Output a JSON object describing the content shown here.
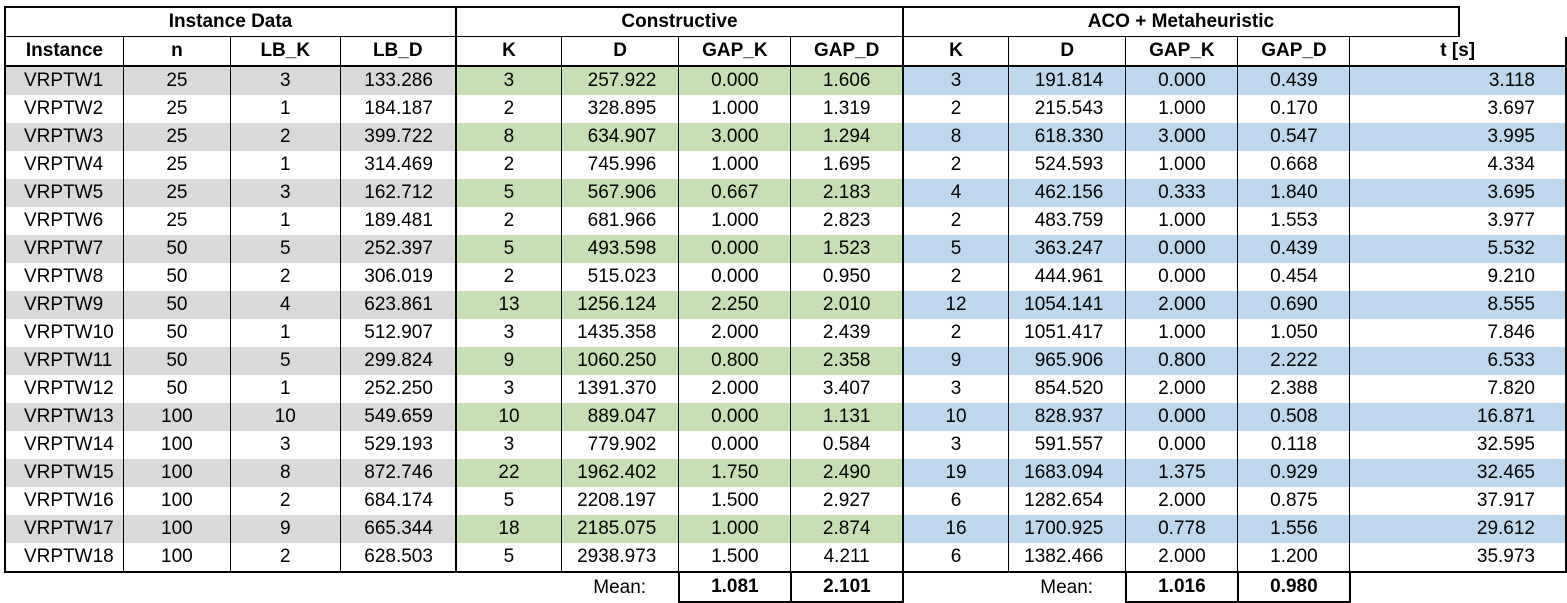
{
  "groups": {
    "instance": "Instance Data",
    "constructive": "Constructive",
    "aco": "ACO + Metaheuristic"
  },
  "columns": [
    "Instance",
    "n",
    "LB_K",
    "LB_D",
    "K",
    "D",
    "GAP_K",
    "GAP_D",
    "K",
    "D",
    "GAP_K",
    "GAP_D",
    "t [s]"
  ],
  "rows": [
    [
      "VRPTW1",
      "25",
      "3",
      "133.286",
      "3",
      "257.922",
      "0.000",
      "1.606",
      "3",
      "191.814",
      "0.000",
      "0.439",
      "3.118"
    ],
    [
      "VRPTW2",
      "25",
      "1",
      "184.187",
      "2",
      "328.895",
      "1.000",
      "1.319",
      "2",
      "215.543",
      "1.000",
      "0.170",
      "3.697"
    ],
    [
      "VRPTW3",
      "25",
      "2",
      "399.722",
      "8",
      "634.907",
      "3.000",
      "1.294",
      "8",
      "618.330",
      "3.000",
      "0.547",
      "3.995"
    ],
    [
      "VRPTW4",
      "25",
      "1",
      "314.469",
      "2",
      "745.996",
      "1.000",
      "1.695",
      "2",
      "524.593",
      "1.000",
      "0.668",
      "4.334"
    ],
    [
      "VRPTW5",
      "25",
      "3",
      "162.712",
      "5",
      "567.906",
      "0.667",
      "2.183",
      "4",
      "462.156",
      "0.333",
      "1.840",
      "3.695"
    ],
    [
      "VRPTW6",
      "25",
      "1",
      "189.481",
      "2",
      "681.966",
      "1.000",
      "2.823",
      "2",
      "483.759",
      "1.000",
      "1.553",
      "3.977"
    ],
    [
      "VRPTW7",
      "50",
      "5",
      "252.397",
      "5",
      "493.598",
      "0.000",
      "1.523",
      "5",
      "363.247",
      "0.000",
      "0.439",
      "5.532"
    ],
    [
      "VRPTW8",
      "50",
      "2",
      "306.019",
      "2",
      "515.023",
      "0.000",
      "0.950",
      "2",
      "444.961",
      "0.000",
      "0.454",
      "9.210"
    ],
    [
      "VRPTW9",
      "50",
      "4",
      "623.861",
      "13",
      "1256.124",
      "2.250",
      "2.010",
      "12",
      "1054.141",
      "2.000",
      "0.690",
      "8.555"
    ],
    [
      "VRPTW10",
      "50",
      "1",
      "512.907",
      "3",
      "1435.358",
      "2.000",
      "2.439",
      "2",
      "1051.417",
      "1.000",
      "1.050",
      "7.846"
    ],
    [
      "VRPTW11",
      "50",
      "5",
      "299.824",
      "9",
      "1060.250",
      "0.800",
      "2.358",
      "9",
      "965.906",
      "0.800",
      "2.222",
      "6.533"
    ],
    [
      "VRPTW12",
      "50",
      "1",
      "252.250",
      "3",
      "1391.370",
      "2.000",
      "3.407",
      "3",
      "854.520",
      "2.000",
      "2.388",
      "7.820"
    ],
    [
      "VRPTW13",
      "100",
      "10",
      "549.659",
      "10",
      "889.047",
      "0.000",
      "1.131",
      "10",
      "828.937",
      "0.000",
      "0.508",
      "16.871"
    ],
    [
      "VRPTW14",
      "100",
      "3",
      "529.193",
      "3",
      "779.902",
      "0.000",
      "0.584",
      "3",
      "591.557",
      "0.000",
      "0.118",
      "32.595"
    ],
    [
      "VRPTW15",
      "100",
      "8",
      "872.746",
      "22",
      "1962.402",
      "1.750",
      "2.490",
      "19",
      "1683.094",
      "1.375",
      "0.929",
      "32.465"
    ],
    [
      "VRPTW16",
      "100",
      "2",
      "684.174",
      "5",
      "2208.197",
      "1.500",
      "2.927",
      "6",
      "1282.654",
      "2.000",
      "0.875",
      "37.917"
    ],
    [
      "VRPTW17",
      "100",
      "9",
      "665.344",
      "18",
      "2185.075",
      "1.000",
      "2.874",
      "16",
      "1700.925",
      "0.778",
      "1.556",
      "29.612"
    ],
    [
      "VRPTW18",
      "100",
      "2",
      "628.503",
      "5",
      "2938.973",
      "1.500",
      "4.211",
      "6",
      "1382.466",
      "2.000",
      "1.200",
      "35.973"
    ]
  ],
  "means": {
    "label": "Mean:",
    "constructive_gap_k": "1.081",
    "constructive_gap_d": "2.101",
    "aco_gap_k": "1.016",
    "aco_gap_d": "0.980"
  },
  "colors": {
    "instance_shade": "#d9d9d9",
    "constructive_shade": "#c6e0b4",
    "aco_shade": "#bdd7ee"
  }
}
